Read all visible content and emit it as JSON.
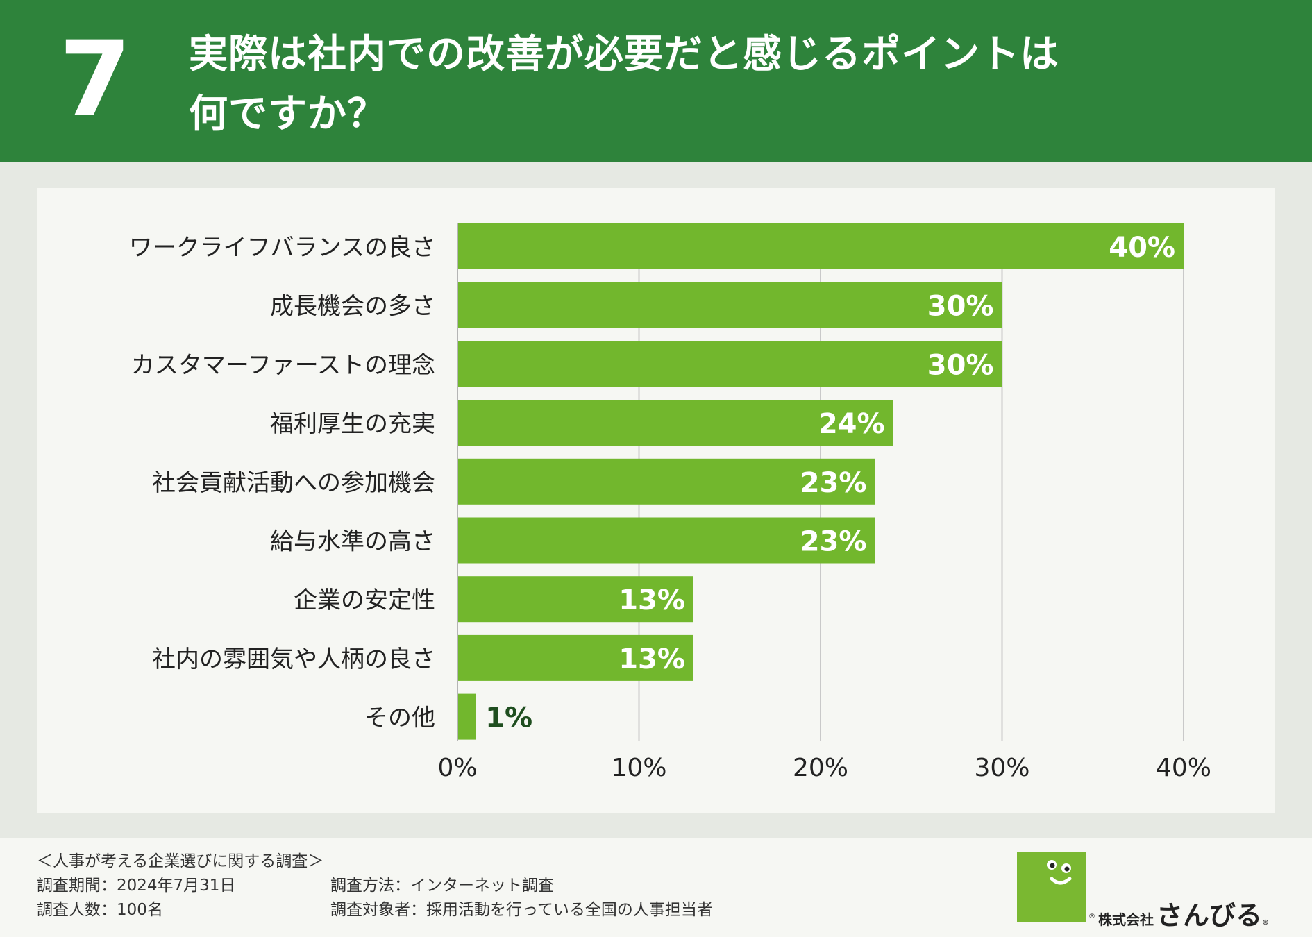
{
  "header": {
    "number": "7",
    "title_line1": "実際は社内での改善が必要だと感じるポイントは",
    "title_line2": "何ですか？"
  },
  "colors": {
    "header_bg": "#2e833b",
    "bar": "#72b72d",
    "label_inside": "#ffffff",
    "label_outside": "#1f4e1f"
  },
  "chart_data": {
    "type": "bar",
    "orientation": "horizontal",
    "categories": [
      "ワークライフバランスの良さ",
      "成長機会の多さ",
      "カスタマーファーストの理念",
      "福利厚生の充実",
      "社会貢献活動への参加機会",
      "給与水準の高さ",
      "企業の安定性",
      "社内の雰囲気や人柄の良さ",
      "その他"
    ],
    "values": [
      40,
      30,
      30,
      24,
      23,
      23,
      13,
      13,
      1
    ],
    "value_labels": [
      "40%",
      "30%",
      "30%",
      "24%",
      "23%",
      "23%",
      "13%",
      "13%",
      "1%"
    ],
    "xlim": [
      0,
      40
    ],
    "xticks": [
      0,
      10,
      20,
      30,
      40
    ],
    "xtick_labels": [
      "0%",
      "10%",
      "20%",
      "30%",
      "40%"
    ],
    "grid": true,
    "title": "",
    "xlabel": "",
    "ylabel": ""
  },
  "footer": {
    "survey_name": "＜人事が考える企業選びに関する調査＞",
    "period": "調査期間：2024年7月31日",
    "method": "調査方法：インターネット調査",
    "respondents": "調査人数：100名",
    "target": "調査対象者：採用活動を行っている全国の人事担当者"
  },
  "logo": {
    "corp": "株式会社",
    "name": "さんびる",
    "reg": "®"
  }
}
